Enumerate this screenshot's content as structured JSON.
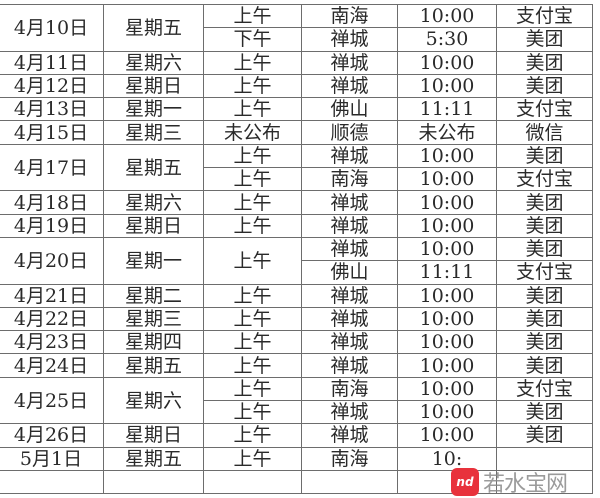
{
  "groups": [
    {
      "date": "4月10日",
      "day": "星期五",
      "entries": [
        [
          "上午",
          "南海",
          "10:00",
          "支付宝"
        ],
        [
          "下午",
          "禅城",
          "5:30",
          "美团"
        ]
      ]
    },
    {
      "date": "4月11日",
      "day": "星期六",
      "entries": [
        [
          "上午",
          "禅城",
          "10:00",
          "美团"
        ]
      ]
    },
    {
      "date": "4月12日",
      "day": "星期日",
      "entries": [
        [
          "上午",
          "禅城",
          "10:00",
          "美团"
        ]
      ]
    },
    {
      "date": "4月13日",
      "day": "星期一",
      "entries": [
        [
          "上午",
          "佛山",
          "11:11",
          "支付宝"
        ]
      ]
    },
    {
      "date": "4月15日",
      "day": "星期三",
      "entries": [
        [
          "未公布",
          "顺德",
          "未公布",
          "微信"
        ]
      ]
    },
    {
      "date": "4月17日",
      "day": "星期五",
      "entries": [
        [
          "上午",
          "禅城",
          "10:00",
          "美团"
        ],
        [
          "上午",
          "南海",
          "10:00",
          "支付宝"
        ]
      ]
    },
    {
      "date": "4月18日",
      "day": "星期六",
      "entries": [
        [
          "上午",
          "禅城",
          "10:00",
          "美团"
        ]
      ]
    },
    {
      "date": "4月19日",
      "day": "星期日",
      "entries": [
        [
          "上午",
          "禅城",
          "10:00",
          "美团"
        ]
      ]
    },
    {
      "date": "4月20日",
      "day": "星期一",
      "period": "上午",
      "entries": [
        [
          "",
          "禅城",
          "10:00",
          "美团"
        ],
        [
          "",
          "佛山",
          "11:11",
          "支付宝"
        ]
      ]
    },
    {
      "date": "4月21日",
      "day": "星期二",
      "entries": [
        [
          "上午",
          "禅城",
          "10:00",
          "美团"
        ]
      ]
    },
    {
      "date": "4月22日",
      "day": "星期三",
      "entries": [
        [
          "上午",
          "禅城",
          "10:00",
          "美团"
        ]
      ]
    },
    {
      "date": "4月23日",
      "day": "星期四",
      "entries": [
        [
          "上午",
          "禅城",
          "10:00",
          "美团"
        ]
      ]
    },
    {
      "date": "4月24日",
      "day": "星期五",
      "entries": [
        [
          "上午",
          "禅城",
          "10:00",
          "美团"
        ]
      ]
    },
    {
      "date": "4月25日",
      "day": "星期六",
      "entries": [
        [
          "上午",
          "南海",
          "10:00",
          "支付宝"
        ],
        [
          "上午",
          "禅城",
          "10:00",
          "美团"
        ]
      ]
    },
    {
      "date": "4月26日",
      "day": "星期日",
      "entries": [
        [
          "上午",
          "禅城",
          "10:00",
          "美团"
        ]
      ]
    },
    {
      "date": "5月1日",
      "day": "星期五",
      "entries": [
        [
          "上午",
          "南海",
          "10:",
          ""
        ]
      ]
    }
  ],
  "watermark": {
    "logo": "nd",
    "text": "若水宝网",
    "color": "#e8323c"
  }
}
